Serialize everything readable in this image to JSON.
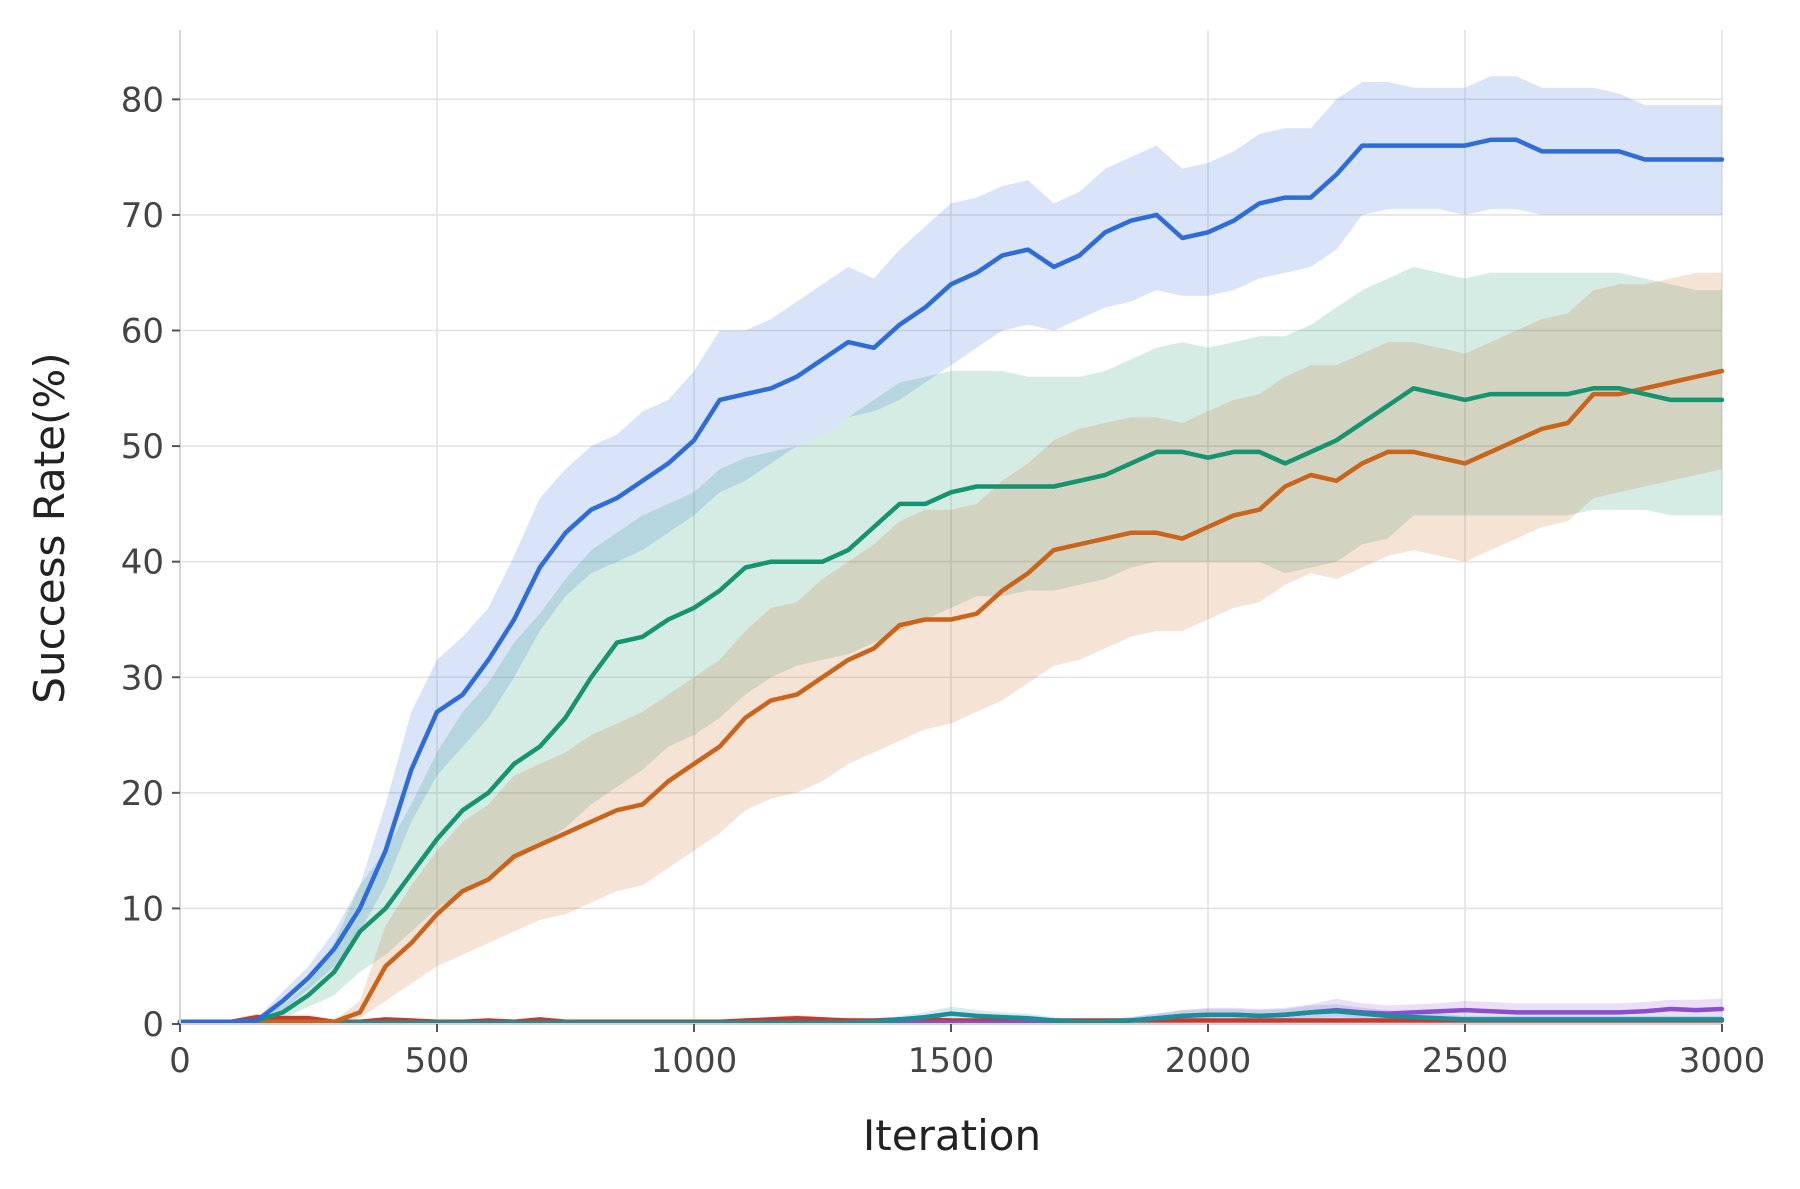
{
  "chart_data": {
    "type": "line",
    "title": "",
    "xlabel": "Iteration",
    "ylabel": "Success Rate(%)",
    "xlim": [
      0,
      3000
    ],
    "ylim": [
      0,
      86
    ],
    "xticks": [
      0,
      500,
      1000,
      1500,
      2000,
      2500,
      3000
    ],
    "yticks": [
      0,
      10,
      20,
      30,
      40,
      50,
      60,
      70,
      80
    ],
    "grid": true,
    "legend": "none",
    "x": [
      0,
      100,
      150,
      200,
      250,
      300,
      350,
      400,
      450,
      500,
      550,
      600,
      650,
      700,
      750,
      800,
      850,
      900,
      950,
      1000,
      1050,
      1100,
      1150,
      1200,
      1250,
      1300,
      1350,
      1400,
      1450,
      1500,
      1550,
      1600,
      1650,
      1700,
      1750,
      1800,
      1850,
      1900,
      1950,
      2000,
      2050,
      2100,
      2150,
      2200,
      2250,
      2300,
      2350,
      2400,
      2450,
      2500,
      2550,
      2600,
      2650,
      2700,
      2750,
      2800,
      2850,
      2900,
      2950,
      3000
    ],
    "series": [
      {
        "color": "#2E6CD6",
        "values": [
          0.2,
          0.2,
          0.3,
          2.0,
          4.0,
          6.5,
          10.0,
          15.0,
          22.0,
          27.0,
          28.5,
          31.5,
          35.0,
          39.5,
          42.5,
          44.5,
          45.5,
          47.0,
          48.5,
          50.5,
          54.0,
          54.5,
          55.0,
          56.0,
          57.5,
          59.0,
          58.5,
          60.5,
          62.0,
          64.0,
          65.0,
          66.5,
          67.0,
          65.5,
          66.5,
          68.5,
          69.5,
          70.0,
          68.0,
          68.5,
          69.5,
          71.0,
          71.5,
          71.5,
          73.5,
          76.0,
          76.0,
          76.0,
          76.0,
          76.0,
          76.5,
          76.5,
          75.5,
          75.5,
          75.5,
          75.5,
          74.8,
          74.8,
          74.8,
          74.8
        ],
        "lower": [
          0.2,
          0.2,
          0.3,
          1.2,
          3.0,
          5.0,
          8.0,
          12.0,
          17.5,
          21.5,
          24.0,
          26.5,
          30.0,
          34.0,
          37.0,
          39.0,
          40.0,
          41.0,
          42.5,
          44.0,
          46.0,
          47.0,
          48.5,
          50.0,
          51.0,
          52.5,
          53.0,
          54.0,
          55.5,
          57.0,
          58.5,
          60.0,
          60.5,
          60.0,
          61.0,
          62.0,
          62.5,
          63.5,
          63.0,
          63.0,
          63.5,
          64.5,
          65.0,
          65.5,
          67.0,
          70.0,
          70.5,
          70.5,
          70.5,
          70.0,
          70.5,
          70.5,
          70.0,
          70.0,
          70.0,
          70.0,
          70.0,
          70.0,
          70.0,
          70.0
        ],
        "upper": [
          0.3,
          0.3,
          0.5,
          2.8,
          5.0,
          8.0,
          12.0,
          19.0,
          27.0,
          31.5,
          33.5,
          36.0,
          40.5,
          45.5,
          48.0,
          50.0,
          51.0,
          53.0,
          54.0,
          56.5,
          60.0,
          60.0,
          61.0,
          62.5,
          64.0,
          65.5,
          64.5,
          67.0,
          69.0,
          71.0,
          71.5,
          72.5,
          73.0,
          71.0,
          72.0,
          74.0,
          75.0,
          76.0,
          74.0,
          74.5,
          75.5,
          77.0,
          77.5,
          77.5,
          80.0,
          81.5,
          81.5,
          81.0,
          81.0,
          81.0,
          82.0,
          82.0,
          81.0,
          81.0,
          81.0,
          80.5,
          79.5,
          79.5,
          79.5,
          79.5
        ]
      },
      {
        "color": "#15946F",
        "values": [
          0.2,
          0.2,
          0.3,
          1.0,
          2.5,
          4.5,
          8.0,
          10.0,
          13.0,
          16.0,
          18.5,
          20.0,
          22.5,
          24.0,
          26.5,
          30.0,
          33.0,
          33.5,
          35.0,
          36.0,
          37.5,
          39.5,
          40.0,
          40.0,
          40.0,
          41.0,
          43.0,
          45.0,
          45.0,
          46.0,
          46.5,
          46.5,
          46.5,
          46.5,
          47.0,
          47.5,
          48.5,
          49.5,
          49.5,
          49.0,
          49.5,
          49.5,
          48.5,
          49.5,
          50.5,
          52.0,
          53.5,
          55.0,
          54.5,
          54.0,
          54.5,
          54.5,
          54.5,
          54.5,
          55.0,
          55.0,
          54.5,
          54.0,
          54.0,
          54.0
        ],
        "lower": [
          0.2,
          0.2,
          0.3,
          0.5,
          1.5,
          2.5,
          4.5,
          6.0,
          8.0,
          10.0,
          11.5,
          12.5,
          14.0,
          15.5,
          17.0,
          19.0,
          20.5,
          22.0,
          24.0,
          25.0,
          26.5,
          28.5,
          30.0,
          31.0,
          31.5,
          32.0,
          33.0,
          34.0,
          35.0,
          36.0,
          37.0,
          37.0,
          37.5,
          37.5,
          38.0,
          38.5,
          39.5,
          40.0,
          40.0,
          40.0,
          40.0,
          40.0,
          39.0,
          39.5,
          40.0,
          41.5,
          42.0,
          44.0,
          44.0,
          44.0,
          44.0,
          44.0,
          44.0,
          44.0,
          44.5,
          44.5,
          44.5,
          44.0,
          44.0,
          44.0
        ],
        "upper": [
          0.3,
          0.3,
          0.5,
          1.6,
          3.5,
          7.0,
          12.0,
          15.0,
          19.0,
          23.5,
          27.0,
          29.5,
          33.0,
          35.5,
          38.5,
          41.0,
          42.5,
          44.0,
          45.0,
          46.0,
          48.0,
          49.0,
          49.5,
          50.0,
          51.0,
          52.5,
          54.0,
          55.5,
          56.0,
          56.5,
          56.5,
          56.5,
          56.0,
          56.0,
          56.0,
          56.5,
          57.5,
          58.5,
          59.0,
          58.5,
          59.0,
          59.5,
          59.5,
          60.5,
          62.0,
          63.5,
          64.5,
          65.5,
          65.0,
          64.5,
          65.0,
          65.0,
          65.0,
          65.0,
          65.0,
          65.0,
          64.5,
          64.0,
          63.5,
          63.5
        ]
      },
      {
        "color": "#C8651B",
        "values": [
          0.2,
          0.2,
          0.2,
          0.2,
          0.2,
          0.2,
          1.0,
          5.0,
          7.0,
          9.5,
          11.5,
          12.5,
          14.5,
          15.5,
          16.5,
          17.5,
          18.5,
          19.0,
          21.0,
          22.5,
          24.0,
          26.5,
          28.0,
          28.5,
          30.0,
          31.5,
          32.5,
          34.5,
          35.0,
          35.0,
          35.5,
          37.5,
          39.0,
          41.0,
          41.5,
          42.0,
          42.5,
          42.5,
          42.0,
          43.0,
          44.0,
          44.5,
          46.5,
          47.5,
          47.0,
          48.5,
          49.5,
          49.5,
          49.0,
          48.5,
          49.5,
          50.5,
          51.5,
          52.0,
          54.5,
          54.5,
          55.0,
          55.5,
          56.0,
          56.5
        ],
        "lower": [
          0.2,
          0.2,
          0.2,
          0.2,
          0.2,
          0.2,
          0.5,
          2.0,
          3.5,
          5.0,
          6.0,
          7.0,
          8.0,
          9.0,
          9.5,
          10.5,
          11.5,
          12.0,
          13.5,
          15.0,
          16.5,
          18.5,
          19.5,
          20.0,
          21.0,
          22.5,
          23.5,
          24.5,
          25.5,
          26.0,
          27.0,
          28.0,
          29.5,
          31.0,
          31.5,
          32.5,
          33.5,
          34.0,
          34.0,
          35.0,
          36.0,
          36.5,
          38.0,
          39.0,
          38.5,
          39.5,
          40.5,
          41.0,
          40.5,
          40.0,
          41.0,
          42.0,
          43.0,
          43.5,
          45.5,
          46.0,
          46.5,
          47.0,
          47.5,
          48.0
        ],
        "upper": [
          0.3,
          0.3,
          0.3,
          0.3,
          0.3,
          0.3,
          2.0,
          8.5,
          12.0,
          15.0,
          17.5,
          19.0,
          21.5,
          22.5,
          23.5,
          25.0,
          26.0,
          27.0,
          28.5,
          30.0,
          31.5,
          34.0,
          36.0,
          36.5,
          38.5,
          40.0,
          41.5,
          43.5,
          44.5,
          44.5,
          45.0,
          47.0,
          48.5,
          50.5,
          51.5,
          52.0,
          52.5,
          52.5,
          52.0,
          53.0,
          54.0,
          54.5,
          56.0,
          57.0,
          57.0,
          58.0,
          59.0,
          59.0,
          58.5,
          58.0,
          59.0,
          60.0,
          61.0,
          61.5,
          63.5,
          64.0,
          64.0,
          64.5,
          65.0,
          65.0
        ]
      },
      {
        "color": "#1B8F99",
        "values": [
          0.1,
          0.1,
          0.1,
          0.1,
          0.1,
          0.1,
          0.1,
          0.1,
          0.1,
          0.1,
          0.1,
          0.1,
          0.1,
          0.1,
          0.1,
          0.1,
          0.1,
          0.1,
          0.1,
          0.1,
          0.1,
          0.1,
          0.1,
          0.1,
          0.1,
          0.1,
          0.2,
          0.4,
          0.6,
          0.9,
          0.7,
          0.6,
          0.5,
          0.3,
          0.2,
          0.2,
          0.3,
          0.5,
          0.7,
          0.8,
          0.8,
          0.7,
          0.8,
          1.0,
          1.1,
          0.9,
          0.7,
          0.6,
          0.5,
          0.4,
          0.4,
          0.4,
          0.4,
          0.4,
          0.4,
          0.4,
          0.4,
          0.4,
          0.4,
          0.4
        ],
        "lower": [
          0.0,
          0.0,
          0.0,
          0.0,
          0.0,
          0.0,
          0.0,
          0.0,
          0.0,
          0.0,
          0.0,
          0.0,
          0.0,
          0.0,
          0.0,
          0.0,
          0.0,
          0.0,
          0.0,
          0.0,
          0.0,
          0.0,
          0.0,
          0.0,
          0.0,
          0.0,
          0.1,
          0.2,
          0.3,
          0.4,
          0.3,
          0.3,
          0.2,
          0.1,
          0.1,
          0.1,
          0.1,
          0.2,
          0.3,
          0.4,
          0.4,
          0.3,
          0.4,
          0.5,
          0.6,
          0.5,
          0.3,
          0.3,
          0.2,
          0.2,
          0.2,
          0.2,
          0.2,
          0.2,
          0.2,
          0.2,
          0.2,
          0.2,
          0.2,
          0.2
        ],
        "upper": [
          0.2,
          0.2,
          0.2,
          0.2,
          0.2,
          0.2,
          0.2,
          0.2,
          0.2,
          0.2,
          0.2,
          0.2,
          0.2,
          0.2,
          0.2,
          0.2,
          0.2,
          0.2,
          0.2,
          0.2,
          0.2,
          0.2,
          0.2,
          0.2,
          0.2,
          0.2,
          0.4,
          0.7,
          1.0,
          1.5,
          1.2,
          1.0,
          0.9,
          0.6,
          0.4,
          0.4,
          0.6,
          0.9,
          1.2,
          1.3,
          1.3,
          1.2,
          1.3,
          1.6,
          1.7,
          1.4,
          1.2,
          1.0,
          0.9,
          0.7,
          0.7,
          0.7,
          0.7,
          0.7,
          0.7,
          0.7,
          0.7,
          0.7,
          0.7,
          0.7
        ]
      },
      {
        "color": "#8A4FD0",
        "values": [
          0.1,
          0.1,
          0.1,
          0.1,
          0.1,
          0.1,
          0.1,
          0.1,
          0.1,
          0.1,
          0.1,
          0.1,
          0.1,
          0.1,
          0.1,
          0.1,
          0.1,
          0.1,
          0.1,
          0.1,
          0.1,
          0.1,
          0.1,
          0.1,
          0.1,
          0.1,
          0.1,
          0.1,
          0.1,
          0.1,
          0.1,
          0.1,
          0.1,
          0.1,
          0.1,
          0.2,
          0.3,
          0.5,
          0.7,
          0.8,
          0.8,
          0.7,
          0.8,
          1.0,
          1.2,
          1.0,
          0.9,
          1.0,
          1.1,
          1.2,
          1.1,
          1.0,
          1.0,
          1.0,
          1.0,
          1.0,
          1.1,
          1.3,
          1.2,
          1.3
        ],
        "lower": [
          0.0,
          0.0,
          0.0,
          0.0,
          0.0,
          0.0,
          0.0,
          0.0,
          0.0,
          0.0,
          0.0,
          0.0,
          0.0,
          0.0,
          0.0,
          0.0,
          0.0,
          0.0,
          0.0,
          0.0,
          0.0,
          0.0,
          0.0,
          0.0,
          0.0,
          0.0,
          0.0,
          0.0,
          0.0,
          0.0,
          0.0,
          0.0,
          0.0,
          0.0,
          0.0,
          0.1,
          0.1,
          0.2,
          0.3,
          0.3,
          0.3,
          0.3,
          0.3,
          0.4,
          0.5,
          0.4,
          0.4,
          0.4,
          0.5,
          0.5,
          0.5,
          0.4,
          0.4,
          0.4,
          0.4,
          0.4,
          0.5,
          0.6,
          0.5,
          0.6
        ],
        "upper": [
          0.2,
          0.2,
          0.2,
          0.2,
          0.2,
          0.2,
          0.2,
          0.2,
          0.2,
          0.2,
          0.2,
          0.2,
          0.2,
          0.2,
          0.2,
          0.2,
          0.2,
          0.2,
          0.2,
          0.2,
          0.2,
          0.2,
          0.2,
          0.2,
          0.2,
          0.2,
          0.2,
          0.2,
          0.2,
          0.2,
          0.2,
          0.2,
          0.2,
          0.2,
          0.2,
          0.4,
          0.6,
          0.9,
          1.2,
          1.4,
          1.4,
          1.3,
          1.4,
          1.7,
          2.2,
          1.8,
          1.6,
          1.7,
          1.8,
          2.0,
          1.9,
          1.8,
          1.8,
          1.8,
          1.8,
          1.8,
          1.9,
          2.1,
          2.1,
          2.2
        ]
      },
      {
        "color": "#C53A2E",
        "values": [
          0.2,
          0.2,
          0.6,
          0.5,
          0.5,
          0.2,
          0.2,
          0.4,
          0.3,
          0.2,
          0.2,
          0.3,
          0.2,
          0.4,
          0.2,
          0.2,
          0.2,
          0.2,
          0.2,
          0.2,
          0.2,
          0.3,
          0.4,
          0.5,
          0.4,
          0.3,
          0.3,
          0.4,
          0.4,
          0.3,
          0.3,
          0.3,
          0.3,
          0.3,
          0.3,
          0.3,
          0.3,
          0.3,
          0.3,
          0.3,
          0.3,
          0.3,
          0.3,
          0.3,
          0.3,
          0.3,
          0.3,
          0.3,
          0.3,
          0.3,
          0.3,
          0.3,
          0.3,
          0.3,
          0.3,
          0.3,
          0.3,
          0.3,
          0.3,
          0.3
        ],
        "lower": [
          0.1,
          0.1,
          0.3,
          0.3,
          0.3,
          0.1,
          0.1,
          0.2,
          0.2,
          0.1,
          0.1,
          0.2,
          0.1,
          0.2,
          0.1,
          0.1,
          0.1,
          0.1,
          0.1,
          0.1,
          0.1,
          0.2,
          0.2,
          0.3,
          0.2,
          0.2,
          0.2,
          0.2,
          0.2,
          0.2,
          0.2,
          0.2,
          0.2,
          0.2,
          0.2,
          0.2,
          0.2,
          0.2,
          0.2,
          0.2,
          0.2,
          0.2,
          0.2,
          0.2,
          0.2,
          0.2,
          0.2,
          0.2,
          0.2,
          0.2,
          0.2,
          0.2,
          0.2,
          0.2,
          0.2,
          0.2,
          0.2,
          0.2,
          0.2,
          0.2
        ],
        "upper": [
          0.3,
          0.3,
          0.9,
          0.8,
          0.8,
          0.3,
          0.3,
          0.6,
          0.5,
          0.3,
          0.3,
          0.5,
          0.3,
          0.6,
          0.3,
          0.3,
          0.3,
          0.3,
          0.3,
          0.3,
          0.3,
          0.5,
          0.6,
          0.8,
          0.6,
          0.5,
          0.5,
          0.6,
          0.6,
          0.5,
          0.5,
          0.5,
          0.5,
          0.5,
          0.5,
          0.5,
          0.5,
          0.5,
          0.5,
          0.5,
          0.5,
          0.5,
          0.5,
          0.5,
          0.5,
          0.5,
          0.5,
          0.5,
          0.5,
          0.5,
          0.5,
          0.5,
          0.5,
          0.5,
          0.5,
          0.5,
          0.5,
          0.5,
          0.5,
          0.5
        ]
      }
    ]
  }
}
